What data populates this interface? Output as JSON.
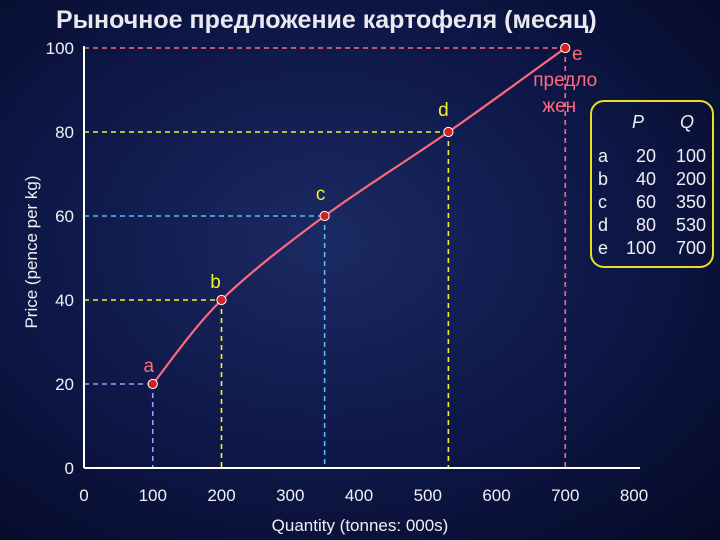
{
  "title": "Рыночное предложение картофеля (месяц)",
  "colors": {
    "curve": "#ff6a7a",
    "point": "#d42020",
    "axis": "#ffffff",
    "guide_a": "#9aa0ff",
    "guide_b": "#f4f030",
    "guide_c": "#5ab8ff",
    "guide_d": "#f4f030",
    "guide_e": "#ff6a7a",
    "label_a": "#ff6a7a",
    "label_b": "#f4f030",
    "label_c": "#f4f030",
    "label_d": "#f4f030",
    "label_e": "#ff6a7a",
    "table_border": "#e8e020"
  },
  "overlay_text": [
    "e",
    "предло",
    "жен"
  ],
  "table": {
    "headers": [
      "P",
      "Q"
    ],
    "rows": [
      {
        "label": "a",
        "p": "20",
        "q": "100"
      },
      {
        "label": "b",
        "p": "40",
        "q": "200"
      },
      {
        "label": "c",
        "p": "60",
        "q": "350"
      },
      {
        "label": "d",
        "p": "80",
        "q": "530"
      },
      {
        "label": "e",
        "p": "100",
        "q": "700"
      }
    ]
  },
  "chart_data": {
    "type": "line",
    "title": "Рыночное предложение картофеля (месяц)",
    "xlabel": "Quantity (tonnes: 000s)",
    "ylabel": "Price (pence per kg)",
    "xlim": [
      0,
      800
    ],
    "ylim": [
      0,
      100
    ],
    "xticks": [
      "0",
      "100",
      "200",
      "300",
      "400",
      "500",
      "600",
      "700",
      "800"
    ],
    "yticks": [
      "0",
      "20",
      "40",
      "60",
      "80",
      "100"
    ],
    "grid": false,
    "series": [
      {
        "points": [
          {
            "label": "a",
            "x": 100,
            "y": 20
          },
          {
            "label": "b",
            "x": 200,
            "y": 40
          },
          {
            "label": "c",
            "x": 350,
            "y": 60
          },
          {
            "label": "d",
            "x": 530,
            "y": 80
          },
          {
            "label": "e",
            "x": 700,
            "y": 100
          }
        ]
      }
    ]
  }
}
